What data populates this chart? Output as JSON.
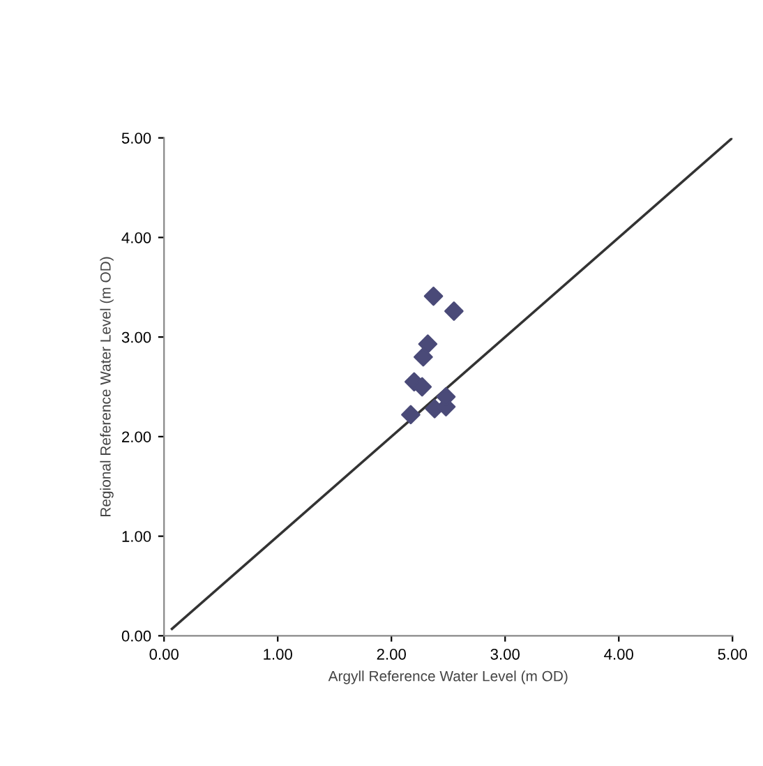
{
  "chart_data": {
    "type": "scatter",
    "xlabel": "Argyll Reference Water Level (m OD)",
    "ylabel": "Regional Reference Water Level (m OD)",
    "xlim": [
      0,
      5
    ],
    "ylim": [
      0,
      5
    ],
    "xticks": [
      {
        "value": 0,
        "label": "0.00"
      },
      {
        "value": 1,
        "label": "1.00"
      },
      {
        "value": 2,
        "label": "2.00"
      },
      {
        "value": 3,
        "label": "3.00"
      },
      {
        "value": 4,
        "label": "4.00"
      },
      {
        "value": 5,
        "label": "5.00"
      }
    ],
    "yticks": [
      {
        "value": 0,
        "label": "0.00"
      },
      {
        "value": 1,
        "label": "1.00"
      },
      {
        "value": 2,
        "label": "2.00"
      },
      {
        "value": 3,
        "label": "3.00"
      },
      {
        "value": 4,
        "label": "4.00"
      },
      {
        "value": 5,
        "label": "5.00"
      }
    ],
    "grid": false,
    "legend": false,
    "marker": "diamond",
    "series": [
      {
        "color": "#4a4a78",
        "x": [
          2.37,
          2.55,
          2.32,
          2.28,
          2.2,
          2.27,
          2.17,
          2.38,
          2.48,
          2.48
        ],
        "values": [
          3.41,
          3.26,
          2.93,
          2.8,
          2.55,
          2.5,
          2.22,
          2.28,
          2.3,
          2.4
        ]
      },
      {
        "type": "line",
        "color": "#333333",
        "line_style": "solid",
        "marker": "none",
        "x": [
          0.07,
          5
        ],
        "values": [
          0.07,
          5
        ]
      }
    ]
  }
}
